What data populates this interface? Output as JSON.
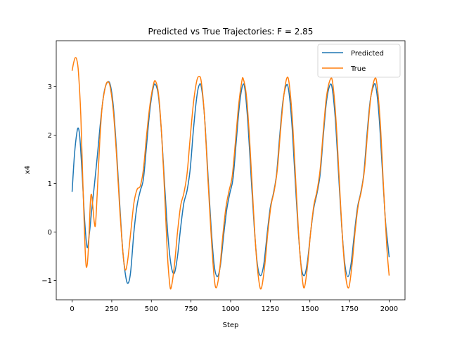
{
  "chart_data": {
    "type": "line",
    "title": "Predicted vs True Trajectories: F = 2.85",
    "xlabel": "Step",
    "ylabel": "x4",
    "xlim": [
      -100,
      2100
    ],
    "ylim": [
      -1.4,
      3.95
    ],
    "xticks": [
      0,
      250,
      500,
      750,
      1000,
      1250,
      1500,
      1750,
      2000
    ],
    "yticks": [
      -1,
      0,
      1,
      2,
      3
    ],
    "grid": false,
    "legend_position": "top-right",
    "series": [
      {
        "name": "Predicted",
        "color": "#1f77b4",
        "points": [
          [
            0,
            0.83
          ],
          [
            15,
            1.6
          ],
          [
            30,
            2.05
          ],
          [
            40,
            2.14
          ],
          [
            50,
            1.9
          ],
          [
            65,
            1.1
          ],
          [
            80,
            0.2
          ],
          [
            95,
            -0.32
          ],
          [
            110,
            0.0
          ],
          [
            125,
            0.5
          ],
          [
            140,
            0.95
          ],
          [
            160,
            1.6
          ],
          [
            180,
            2.3
          ],
          [
            200,
            2.85
          ],
          [
            220,
            3.08
          ],
          [
            240,
            3.05
          ],
          [
            260,
            2.6
          ],
          [
            280,
            1.7
          ],
          [
            300,
            0.6
          ],
          [
            320,
            -0.4
          ],
          [
            340,
            -0.95
          ],
          [
            355,
            -1.05
          ],
          [
            370,
            -0.8
          ],
          [
            390,
            0.0
          ],
          [
            410,
            0.55
          ],
          [
            430,
            0.85
          ],
          [
            450,
            1.1
          ],
          [
            470,
            1.8
          ],
          [
            490,
            2.5
          ],
          [
            510,
            2.95
          ],
          [
            525,
            3.05
          ],
          [
            545,
            2.8
          ],
          [
            565,
            2.0
          ],
          [
            585,
            0.9
          ],
          [
            605,
            -0.1
          ],
          [
            625,
            -0.7
          ],
          [
            645,
            -0.85
          ],
          [
            665,
            -0.5
          ],
          [
            685,
            0.1
          ],
          [
            705,
            0.6
          ],
          [
            725,
            0.85
          ],
          [
            745,
            1.3
          ],
          [
            765,
            2.1
          ],
          [
            785,
            2.75
          ],
          [
            800,
            3.02
          ],
          [
            815,
            3.0
          ],
          [
            835,
            2.4
          ],
          [
            855,
            1.3
          ],
          [
            875,
            0.2
          ],
          [
            895,
            -0.65
          ],
          [
            915,
            -0.92
          ],
          [
            935,
            -0.7
          ],
          [
            955,
            -0.1
          ],
          [
            975,
            0.45
          ],
          [
            995,
            0.8
          ],
          [
            1015,
            1.1
          ],
          [
            1035,
            1.85
          ],
          [
            1055,
            2.6
          ],
          [
            1075,
            3.02
          ],
          [
            1090,
            2.95
          ],
          [
            1110,
            2.2
          ],
          [
            1130,
            1.1
          ],
          [
            1150,
            0.05
          ],
          [
            1170,
            -0.7
          ],
          [
            1190,
            -0.9
          ],
          [
            1210,
            -0.65
          ],
          [
            1230,
            -0.05
          ],
          [
            1250,
            0.5
          ],
          [
            1270,
            0.8
          ],
          [
            1290,
            1.2
          ],
          [
            1310,
            2.0
          ],
          [
            1330,
            2.7
          ],
          [
            1350,
            3.02
          ],
          [
            1365,
            2.95
          ],
          [
            1385,
            2.3
          ],
          [
            1405,
            1.2
          ],
          [
            1425,
            0.1
          ],
          [
            1445,
            -0.7
          ],
          [
            1465,
            -0.9
          ],
          [
            1485,
            -0.6
          ],
          [
            1505,
            0.0
          ],
          [
            1525,
            0.5
          ],
          [
            1545,
            0.8
          ],
          [
            1565,
            1.2
          ],
          [
            1585,
            2.0
          ],
          [
            1605,
            2.7
          ],
          [
            1625,
            3.02
          ],
          [
            1640,
            2.98
          ],
          [
            1660,
            2.35
          ],
          [
            1680,
            1.25
          ],
          [
            1700,
            0.15
          ],
          [
            1720,
            -0.65
          ],
          [
            1740,
            -0.92
          ],
          [
            1760,
            -0.65
          ],
          [
            1780,
            -0.05
          ],
          [
            1800,
            0.5
          ],
          [
            1820,
            0.8
          ],
          [
            1840,
            1.2
          ],
          [
            1860,
            2.0
          ],
          [
            1880,
            2.7
          ],
          [
            1900,
            3.0
          ],
          [
            1915,
            3.02
          ],
          [
            1935,
            2.45
          ],
          [
            1955,
            1.4
          ],
          [
            1975,
            0.3
          ],
          [
            1990,
            -0.2
          ],
          [
            2000,
            -0.52
          ]
        ]
      },
      {
        "name": "True",
        "color": "#ff7f0e",
        "points": [
          [
            0,
            3.33
          ],
          [
            10,
            3.5
          ],
          [
            20,
            3.6
          ],
          [
            30,
            3.55
          ],
          [
            40,
            3.3
          ],
          [
            55,
            2.4
          ],
          [
            70,
            0.8
          ],
          [
            85,
            -0.55
          ],
          [
            95,
            -0.68
          ],
          [
            105,
            -0.2
          ],
          [
            115,
            0.6
          ],
          [
            122,
            0.78
          ],
          [
            130,
            0.55
          ],
          [
            140,
            0.2
          ],
          [
            148,
            0.17
          ],
          [
            160,
            0.9
          ],
          [
            175,
            1.9
          ],
          [
            190,
            2.6
          ],
          [
            210,
            3.0
          ],
          [
            225,
            3.1
          ],
          [
            240,
            3.0
          ],
          [
            260,
            2.5
          ],
          [
            280,
            1.6
          ],
          [
            300,
            0.5
          ],
          [
            320,
            -0.4
          ],
          [
            335,
            -0.78
          ],
          [
            350,
            -0.6
          ],
          [
            370,
            0.0
          ],
          [
            390,
            0.6
          ],
          [
            410,
            0.88
          ],
          [
            430,
            0.95
          ],
          [
            450,
            1.3
          ],
          [
            470,
            2.0
          ],
          [
            490,
            2.6
          ],
          [
            510,
            3.0
          ],
          [
            525,
            3.12
          ],
          [
            545,
            2.85
          ],
          [
            565,
            2.0
          ],
          [
            585,
            0.7
          ],
          [
            600,
            -0.4
          ],
          [
            615,
            -1.05
          ],
          [
            625,
            -1.15
          ],
          [
            645,
            -0.7
          ],
          [
            665,
            0.0
          ],
          [
            685,
            0.55
          ],
          [
            705,
            0.8
          ],
          [
            725,
            1.2
          ],
          [
            745,
            1.95
          ],
          [
            765,
            2.65
          ],
          [
            785,
            3.1
          ],
          [
            800,
            3.21
          ],
          [
            815,
            3.1
          ],
          [
            835,
            2.4
          ],
          [
            855,
            1.2
          ],
          [
            875,
            0.05
          ],
          [
            895,
            -0.9
          ],
          [
            910,
            -1.15
          ],
          [
            930,
            -0.8
          ],
          [
            950,
            -0.1
          ],
          [
            970,
            0.5
          ],
          [
            990,
            0.85
          ],
          [
            1010,
            1.15
          ],
          [
            1030,
            1.85
          ],
          [
            1050,
            2.6
          ],
          [
            1070,
            3.1
          ],
          [
            1080,
            3.16
          ],
          [
            1100,
            2.8
          ],
          [
            1120,
            1.9
          ],
          [
            1140,
            0.7
          ],
          [
            1160,
            -0.4
          ],
          [
            1180,
            -1.05
          ],
          [
            1195,
            -1.15
          ],
          [
            1215,
            -0.7
          ],
          [
            1235,
            0.0
          ],
          [
            1255,
            0.55
          ],
          [
            1275,
            0.85
          ],
          [
            1295,
            1.3
          ],
          [
            1315,
            2.1
          ],
          [
            1335,
            2.8
          ],
          [
            1355,
            3.18
          ],
          [
            1370,
            3.05
          ],
          [
            1390,
            2.3
          ],
          [
            1410,
            1.1
          ],
          [
            1430,
            -0.1
          ],
          [
            1450,
            -0.9
          ],
          [
            1465,
            -1.15
          ],
          [
            1485,
            -0.7
          ],
          [
            1505,
            0.0
          ],
          [
            1525,
            0.55
          ],
          [
            1545,
            0.85
          ],
          [
            1565,
            1.3
          ],
          [
            1585,
            2.1
          ],
          [
            1605,
            2.8
          ],
          [
            1630,
            3.16
          ],
          [
            1645,
            3.05
          ],
          [
            1665,
            2.3
          ],
          [
            1685,
            1.1
          ],
          [
            1705,
            -0.1
          ],
          [
            1725,
            -0.9
          ],
          [
            1745,
            -1.15
          ],
          [
            1765,
            -0.7
          ],
          [
            1785,
            0.0
          ],
          [
            1805,
            0.55
          ],
          [
            1825,
            0.85
          ],
          [
            1845,
            1.3
          ],
          [
            1865,
            2.1
          ],
          [
            1885,
            2.8
          ],
          [
            1910,
            3.17
          ],
          [
            1925,
            3.0
          ],
          [
            1945,
            2.2
          ],
          [
            1965,
            0.9
          ],
          [
            1985,
            -0.3
          ],
          [
            2000,
            -0.9
          ]
        ]
      }
    ]
  }
}
